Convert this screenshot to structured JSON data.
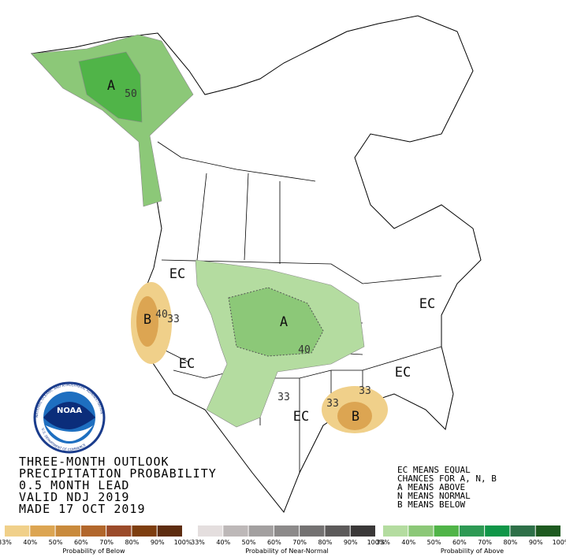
{
  "title_lines": [
    "THREE-MONTH OUTLOOK",
    "PRECIPITATION PROBABILITY",
    "0.5 MONTH LEAD",
    "VALID NDJ 2019",
    "MADE 17 OCT 2019"
  ],
  "key_lines": [
    "EC MEANS EQUAL",
    "CHANCES FOR A, N, B",
    "A MEANS ABOVE",
    "N MEANS NORMAL",
    "B MEANS BELOW"
  ],
  "map_labels": [
    "A",
    "50",
    "EC",
    "B",
    "40",
    "33",
    "A",
    "40",
    "EC",
    "EC",
    "33",
    "EC",
    "33",
    "33",
    "B",
    "EC"
  ],
  "logo": {
    "name": "NOAA",
    "ring_top": "NATIONAL OCEANIC AND ATMOSPHERIC ADMINISTRATION",
    "ring_bottom": "U.S. DEPARTMENT OF COMMERCE"
  },
  "color_scales": [
    {
      "caption": "Probability of Below",
      "colors": [
        "#f0d08a",
        "#dca552",
        "#c98a3c",
        "#b2672c",
        "#9b4b2a",
        "#7e3e0f",
        "#5e2d10"
      ],
      "labels": [
        "33%",
        "40%",
        "50%",
        "60%",
        "70%",
        "80%",
        "90%",
        "100%"
      ]
    },
    {
      "caption": "Probability of Near-Normal",
      "colors": [
        "#e4dede",
        "#bdb8b8",
        "#a3a0a0",
        "#8c8a8a",
        "#747272",
        "#5c5a5a",
        "#3a3838"
      ],
      "labels": [
        "33%",
        "40%",
        "50%",
        "60%",
        "70%",
        "80%",
        "90%",
        "100%"
      ]
    },
    {
      "caption": "Probability of Above",
      "colors": [
        "#b4dca0",
        "#8cc878",
        "#50b448",
        "#2e9a54",
        "#109648",
        "#2e7048",
        "#1e5a20"
      ],
      "labels": [
        "33%",
        "40%",
        "50%",
        "60%",
        "70%",
        "80%",
        "90%",
        "100%"
      ]
    }
  ]
}
